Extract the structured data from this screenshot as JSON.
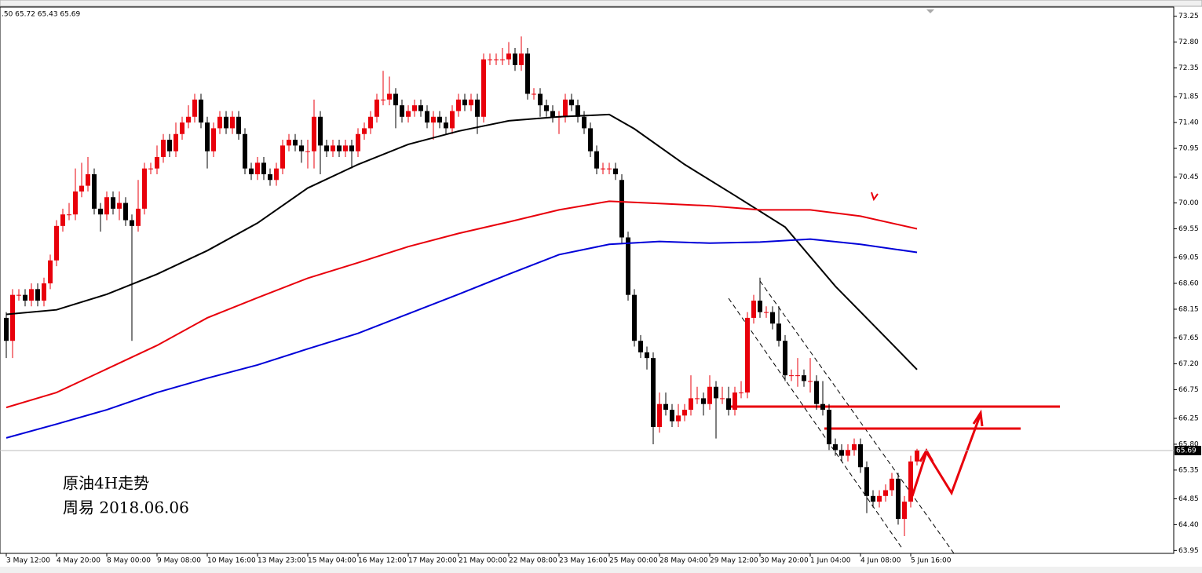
{
  "chart_data": {
    "type": "candlestick",
    "header": ".50 65.72 65.43 65.69",
    "annotations": [
      "原油4H走势",
      "周易 2018.06.06"
    ],
    "up_color": "#e8000b",
    "down_color": "#000000",
    "categories": [
      "3 May 12:00",
      null,
      null,
      null,
      null,
      null,
      null,
      null,
      "4 May 20:00",
      null,
      null,
      null,
      null,
      null,
      null,
      null,
      "8 May 00:00",
      null,
      null,
      null,
      null,
      null,
      null,
      null,
      "9 May 08:00",
      null,
      null,
      null,
      null,
      null,
      null,
      null,
      "10 May 16:00",
      null,
      null,
      null,
      null,
      null,
      null,
      null,
      "13 May 23:00",
      null,
      null,
      null,
      null,
      null,
      null,
      null,
      "15 May 04:00",
      null,
      null,
      null,
      null,
      null,
      null,
      null,
      "16 May 12:00",
      null,
      null,
      null,
      null,
      null,
      null,
      null,
      "17 May 20:00",
      null,
      null,
      null,
      null,
      null,
      null,
      null,
      "21 May 00:00",
      null,
      null,
      null,
      null,
      null,
      null,
      null,
      "22 May 08:00",
      null,
      null,
      null,
      null,
      null,
      null,
      null,
      "23 May 16:00",
      null,
      null,
      null,
      null,
      null,
      null,
      null,
      "25 May 00:00",
      null,
      null,
      null,
      null,
      null,
      null,
      null,
      "28 May 04:00",
      null,
      null,
      null,
      null,
      null,
      null,
      null,
      "29 May 12:00",
      null,
      null,
      null,
      null,
      null,
      null,
      null,
      "30 May 20:00",
      null,
      null,
      null,
      null,
      null,
      null,
      null,
      "1 Jun 04:00",
      null,
      null,
      null,
      null,
      null,
      null,
      null,
      "4 Jun 08:00",
      null,
      null,
      null,
      null,
      null,
      null,
      null,
      "5 Jun 16:00",
      null
    ],
    "open": [
      68.0,
      67.6,
      68.4,
      68.4,
      68.3,
      68.5,
      68.3,
      68.6,
      69.0,
      69.6,
      69.8,
      69.8,
      70.2,
      70.3,
      70.5,
      69.9,
      69.8,
      70.1,
      69.9,
      70.0,
      69.7,
      69.6,
      69.9,
      70.6,
      70.6,
      70.8,
      71.1,
      70.9,
      71.2,
      71.4,
      71.5,
      71.8,
      71.4,
      70.9,
      71.3,
      71.5,
      71.3,
      71.5,
      71.2,
      70.6,
      70.5,
      70.7,
      70.5,
      70.4,
      70.6,
      71.0,
      71.1,
      71.0,
      70.9,
      70.9,
      71.5,
      71.0,
      70.9,
      71.0,
      70.9,
      71.0,
      70.9,
      71.2,
      71.3,
      71.5,
      71.8,
      71.8,
      71.9,
      71.7,
      71.5,
      71.6,
      71.7,
      71.6,
      71.4,
      71.5,
      71.4,
      71.3,
      71.6,
      71.8,
      71.7,
      71.8,
      71.5,
      72.5,
      72.5,
      72.5,
      72.5,
      72.6,
      72.4,
      72.6,
      71.9,
      71.9,
      71.7,
      71.6,
      71.5,
      71.5,
      71.8,
      71.7,
      71.5,
      71.3,
      70.9,
      70.6,
      70.6,
      70.6,
      70.4,
      69.4,
      68.4,
      67.6,
      67.4,
      67.3,
      66.1,
      66.5,
      66.4,
      66.2,
      66.3,
      66.4,
      66.6,
      66.6,
      66.5,
      66.8,
      66.6,
      66.6,
      66.4,
      66.7,
      66.7,
      68.0,
      68.3,
      68.1,
      68.1,
      67.9,
      67.6,
      67.0,
      67.0,
      67.0,
      66.9,
      66.9,
      66.5,
      66.4,
      65.8,
      65.7,
      65.6,
      65.7,
      65.8,
      65.4,
      64.9,
      64.8,
      64.9,
      65.0,
      65.2,
      64.5,
      64.8,
      65.5
    ],
    "high": [
      68.1,
      68.5,
      68.5,
      68.5,
      68.6,
      68.6,
      68.7,
      69.1,
      69.7,
      69.9,
      70.0,
      70.6,
      70.7,
      70.8,
      70.6,
      70.0,
      70.2,
      70.2,
      70.2,
      70.1,
      69.8,
      70.4,
      70.7,
      70.7,
      71.0,
      71.2,
      71.2,
      71.4,
      71.5,
      71.7,
      71.9,
      71.9,
      71.5,
      71.4,
      71.6,
      71.6,
      71.6,
      71.6,
      71.3,
      70.7,
      70.8,
      70.8,
      70.6,
      70.7,
      71.1,
      71.2,
      71.2,
      71.1,
      71.1,
      71.8,
      71.6,
      71.1,
      71.1,
      71.1,
      71.1,
      71.1,
      71.3,
      71.4,
      71.6,
      71.9,
      72.3,
      72.2,
      72.0,
      71.8,
      71.7,
      71.8,
      71.8,
      71.7,
      71.6,
      71.6,
      71.5,
      71.7,
      71.9,
      71.9,
      71.9,
      71.9,
      72.6,
      72.6,
      72.6,
      72.7,
      72.8,
      72.7,
      72.9,
      72.7,
      72.0,
      72.0,
      71.8,
      71.7,
      71.6,
      71.9,
      71.9,
      71.8,
      71.6,
      71.4,
      71.0,
      70.7,
      70.7,
      70.7,
      70.5,
      69.5,
      68.5,
      67.7,
      67.5,
      67.4,
      66.7,
      66.7,
      66.5,
      66.5,
      66.5,
      67.0,
      66.8,
      66.7,
      67.0,
      66.9,
      66.8,
      66.8,
      66.8,
      66.9,
      68.1,
      68.4,
      68.7,
      68.2,
      68.2,
      68.2,
      67.7,
      67.1,
      67.3,
      67.1,
      67.3,
      67.0,
      66.9,
      66.5,
      65.9,
      65.8,
      65.8,
      65.9,
      65.9,
      65.5,
      65.0,
      65.0,
      65.1,
      65.3,
      65.3,
      64.9,
      65.6,
      65.72
    ],
    "low": [
      67.3,
      67.3,
      68.3,
      68.2,
      68.2,
      68.2,
      68.2,
      68.5,
      68.9,
      69.5,
      69.7,
      69.7,
      70.1,
      70.2,
      69.8,
      69.5,
      69.7,
      69.8,
      69.7,
      69.6,
      67.6,
      69.5,
      69.8,
      70.5,
      70.5,
      70.7,
      70.8,
      70.8,
      71.1,
      71.3,
      71.4,
      71.3,
      70.6,
      70.8,
      71.2,
      71.2,
      71.2,
      71.1,
      70.5,
      70.4,
      70.4,
      70.4,
      70.3,
      70.3,
      70.5,
      70.9,
      70.9,
      70.7,
      70.6,
      70.6,
      70.5,
      70.8,
      70.8,
      70.8,
      70.8,
      70.6,
      70.8,
      71.1,
      71.2,
      71.4,
      71.7,
      71.7,
      71.3,
      71.4,
      71.4,
      71.5,
      71.5,
      71.3,
      71.1,
      71.3,
      71.2,
      71.2,
      71.5,
      71.6,
      71.6,
      71.2,
      71.4,
      72.4,
      72.4,
      72.4,
      72.4,
      72.3,
      72.3,
      71.8,
      71.8,
      71.5,
      71.5,
      71.4,
      71.2,
      71.4,
      71.6,
      71.4,
      71.2,
      70.8,
      70.5,
      70.5,
      70.5,
      70.4,
      69.3,
      68.3,
      67.5,
      67.3,
      67.1,
      65.8,
      66.0,
      66.3,
      66.1,
      66.1,
      66.2,
      66.3,
      66.5,
      66.3,
      66.4,
      65.9,
      66.5,
      66.3,
      66.3,
      66.6,
      66.6,
      67.9,
      68.0,
      68.0,
      67.8,
      67.5,
      66.9,
      66.9,
      66.8,
      66.8,
      66.7,
      66.4,
      66.3,
      65.7,
      65.6,
      65.5,
      65.5,
      65.6,
      65.3,
      64.6,
      64.7,
      64.7,
      64.8,
      64.9,
      64.4,
      64.2,
      64.7,
      65.43
    ],
    "close": [
      67.6,
      68.4,
      68.4,
      68.3,
      68.5,
      68.3,
      68.6,
      69.0,
      69.6,
      69.8,
      69.8,
      70.2,
      70.3,
      70.5,
      69.9,
      69.8,
      70.1,
      69.9,
      70.0,
      69.7,
      69.6,
      69.9,
      70.6,
      70.6,
      70.8,
      71.1,
      70.9,
      71.2,
      71.4,
      71.5,
      71.8,
      71.4,
      70.9,
      71.3,
      71.5,
      71.3,
      71.5,
      71.2,
      70.6,
      70.5,
      70.7,
      70.5,
      70.4,
      70.6,
      71.0,
      71.1,
      71.0,
      70.9,
      70.9,
      71.5,
      71.0,
      70.9,
      71.0,
      70.9,
      71.0,
      70.9,
      71.2,
      71.3,
      71.5,
      71.8,
      71.8,
      71.9,
      71.7,
      71.5,
      71.6,
      71.7,
      71.6,
      71.4,
      71.5,
      71.4,
      71.3,
      71.6,
      71.8,
      71.7,
      71.8,
      71.5,
      72.5,
      72.5,
      72.5,
      72.5,
      72.6,
      72.4,
      72.6,
      71.9,
      71.9,
      71.7,
      71.6,
      71.5,
      71.5,
      71.8,
      71.7,
      71.5,
      71.3,
      70.9,
      70.6,
      70.6,
      70.6,
      70.5,
      69.4,
      68.4,
      67.6,
      67.4,
      67.3,
      66.1,
      66.5,
      66.4,
      66.2,
      66.3,
      66.4,
      66.6,
      66.6,
      66.5,
      66.8,
      66.6,
      66.6,
      66.4,
      66.7,
      66.7,
      68.0,
      68.3,
      68.1,
      68.1,
      67.9,
      67.6,
      67.0,
      67.0,
      67.0,
      66.9,
      66.9,
      66.5,
      66.4,
      65.8,
      65.7,
      65.6,
      65.7,
      65.8,
      65.4,
      64.9,
      64.8,
      64.9,
      65.0,
      65.2,
      64.5,
      64.8,
      65.5,
      65.69
    ],
    "lines": [
      {
        "color": "#000000",
        "x": [
          0,
          8,
          16,
          24,
          32,
          40,
          48,
          56,
          64,
          72,
          80,
          88,
          96,
          100,
          108,
          116,
          124,
          132,
          140,
          145
        ],
        "values": [
          68.06,
          68.14,
          68.41,
          68.76,
          69.17,
          69.65,
          70.26,
          70.67,
          71.02,
          71.25,
          71.43,
          71.5,
          71.54,
          71.29,
          70.67,
          70.13,
          69.58,
          68.55,
          67.66,
          67.1
        ]
      },
      {
        "color": "#e8000b",
        "x": [
          0,
          8,
          16,
          24,
          32,
          40,
          48,
          56,
          64,
          72,
          80,
          88,
          96,
          104,
          112,
          120,
          128,
          136,
          145
        ],
        "values": [
          66.44,
          66.7,
          67.11,
          67.52,
          68.0,
          68.35,
          68.69,
          68.96,
          69.24,
          69.47,
          69.67,
          69.88,
          70.03,
          69.99,
          69.95,
          69.88,
          69.88,
          69.77,
          69.55
        ]
      },
      {
        "color": "#0000d8",
        "x": [
          0,
          8,
          16,
          24,
          32,
          40,
          48,
          56,
          64,
          72,
          80,
          88,
          96,
          104,
          112,
          120,
          128,
          136,
          145
        ],
        "values": [
          65.91,
          66.15,
          66.4,
          66.7,
          66.95,
          67.18,
          67.46,
          67.73,
          68.07,
          68.41,
          68.76,
          69.1,
          69.28,
          69.33,
          69.3,
          69.32,
          69.37,
          69.28,
          69.14
        ]
      }
    ],
    "current_price": {
      "value": 65.69,
      "label": "65.69"
    },
    "ylim": [
      63.9,
      73.41
    ],
    "yticks": [
      73.25,
      {
        "value": 72.8,
        "label": "72.80"
      },
      72.35,
      71.85,
      {
        "value": 71.4,
        "label": "71.40"
      },
      70.95,
      70.45,
      {
        "value": 70.0,
        "label": "70.00"
      },
      69.55,
      69.05,
      {
        "value": 68.6,
        "label": "68.60"
      },
      68.15,
      67.65,
      {
        "value": 67.2,
        "label": "67.20"
      },
      66.75,
      66.25,
      {
        "value": 65.8,
        "label": "65.80"
      },
      65.35,
      64.85,
      {
        "value": 64.4,
        "label": "64.40"
      },
      63.95
    ]
  }
}
